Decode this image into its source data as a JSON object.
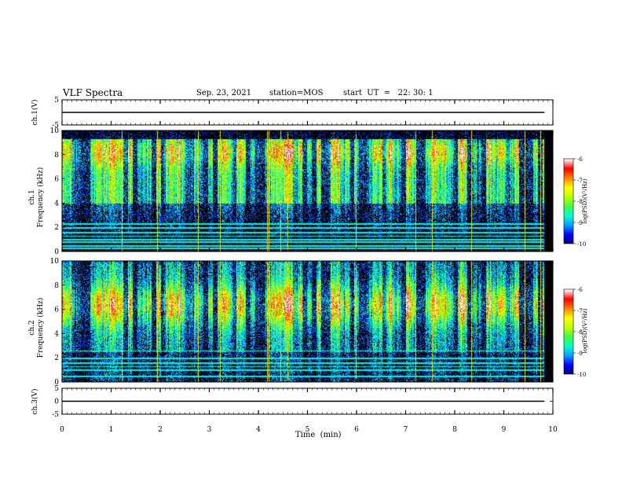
{
  "header": {
    "title": "VLF Spectra",
    "date": "Sep. 23, 2021",
    "station": "station=MOS",
    "start": "start  UT  =   22: 30: 1"
  },
  "chart_data": [
    {
      "type": "line",
      "name": "ch1-waveform",
      "ylabel": "ch.1(V)",
      "ylim": [
        -5,
        5
      ],
      "yticks": [
        "5",
        "-5"
      ],
      "x": [
        0,
        9.83
      ],
      "values": [
        0,
        0
      ]
    },
    {
      "type": "heatmap",
      "name": "ch1-spectrogram",
      "ylabel": "ch.1\nFrequency (kHz)",
      "ylabel_line1": "ch.1",
      "ylabel_line2": "Frequency (kHz)",
      "ylim": [
        0,
        10
      ],
      "yticks": [
        "0",
        "2",
        "4",
        "6",
        "8",
        "10"
      ],
      "xlim": [
        0,
        10
      ],
      "data_end_min": 9.83,
      "colorbar": {
        "label": "log(PSD)(V²/Hz)",
        "range": [
          -10,
          -6
        ],
        "ticks": [
          "-6",
          "-7",
          "-8",
          "-9",
          "-10"
        ]
      },
      "hum_lines_khz": [
        0.3,
        0.5,
        0.8,
        1.0,
        1.3,
        1.6,
        2.0,
        2.3
      ]
    },
    {
      "type": "heatmap",
      "name": "ch2-spectrogram",
      "ylabel": "ch.2\nFrequency (kHz)",
      "ylabel_line1": "ch.2",
      "ylabel_line2": "Frequency (kHz)",
      "ylim": [
        0,
        10
      ],
      "yticks": [
        "0",
        "2",
        "4",
        "6",
        "8",
        "10"
      ],
      "xlim": [
        0,
        10
      ],
      "data_end_min": 9.83,
      "colorbar": {
        "label": "log(PSD)(V²/Hz)",
        "range": [
          -10,
          -6
        ],
        "ticks": [
          "-6",
          "-7",
          "-8",
          "-9",
          "-10"
        ]
      },
      "hum_lines_khz": [
        0.5,
        1.0,
        1.3,
        1.6,
        2.0,
        2.6
      ]
    },
    {
      "type": "line",
      "name": "ch3-waveform",
      "ylabel": "ch.3(V)",
      "ylim": [
        -5,
        5
      ],
      "yticks": [
        "5",
        "0",
        "-5"
      ],
      "x": [
        0,
        9.83
      ],
      "values": [
        0,
        0
      ]
    }
  ],
  "xaxis": {
    "label": "Time  (min)",
    "range": [
      0,
      10
    ],
    "ticks": [
      "0",
      "1",
      "2",
      "3",
      "4",
      "5",
      "6",
      "7",
      "8",
      "9",
      "10"
    ]
  },
  "colors": {
    "background": "#000000",
    "scale": [
      "#00007f",
      "#0000ff",
      "#00a0ff",
      "#00ffd0",
      "#40ff40",
      "#c0ff00",
      "#ffff00",
      "#ff8000",
      "#ff0000",
      "#ffffff"
    ]
  }
}
